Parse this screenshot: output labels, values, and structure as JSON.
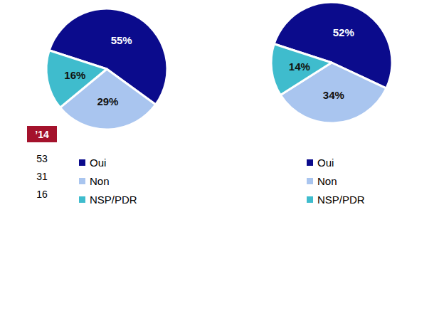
{
  "chart_data": [
    {
      "type": "pie",
      "categories": [
        "Oui",
        "Non",
        "NSP/PDR"
      ],
      "values": [
        55,
        29,
        16
      ],
      "value_labels": [
        "55%",
        "29%",
        "16%"
      ],
      "colors": [
        "#0b0b8c",
        "#a9c5ef",
        "#3fbccd"
      ],
      "data_labels": true,
      "legend": "bottom-left",
      "comparison": {
        "label": "’14",
        "values": [
          53,
          31,
          16
        ]
      }
    },
    {
      "type": "pie",
      "categories": [
        "Oui",
        "Non",
        "NSP/PDR"
      ],
      "values": [
        52,
        34,
        14
      ],
      "value_labels": [
        "52%",
        "34%",
        "14%"
      ],
      "colors": [
        "#0b0b8c",
        "#a9c5ef",
        "#3fbccd"
      ],
      "data_labels": true,
      "legend": "bottom-left"
    }
  ]
}
